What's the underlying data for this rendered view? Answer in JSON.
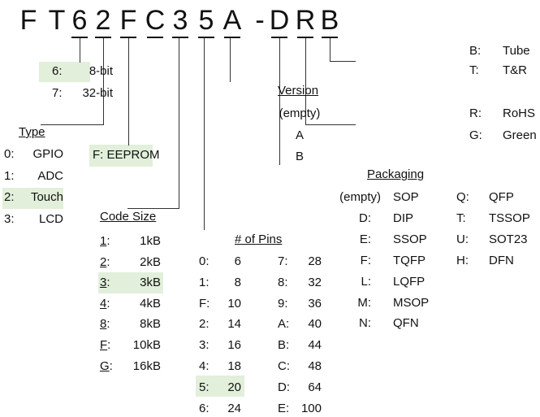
{
  "part_number": {
    "chars": [
      "F",
      "T",
      "6",
      "2",
      "F",
      "C",
      "3",
      "5",
      "A",
      "-",
      "D",
      "R",
      "B"
    ]
  },
  "highlight_color": "#e2efda",
  "bits": {
    "items": [
      {
        "code": "6:",
        "value": "8-bit",
        "selected": true
      },
      {
        "code": "7:",
        "value": "32-bit"
      }
    ]
  },
  "type": {
    "title": "Type",
    "items": [
      {
        "code": "0:",
        "value": "GPIO"
      },
      {
        "code": "1:",
        "value": "ADC"
      },
      {
        "code": "2:",
        "value": "Touch",
        "selected": true
      },
      {
        "code": "3:",
        "value": "LCD"
      }
    ]
  },
  "memory": {
    "label": "F: EEPROM",
    "selected": true
  },
  "code_size": {
    "title": "Code Size",
    "items": [
      {
        "code": "1",
        "value": "1kB"
      },
      {
        "code": "2",
        "value": "2kB"
      },
      {
        "code": "3",
        "value": "3kB",
        "selected": true
      },
      {
        "code": "4",
        "value": "4kB"
      },
      {
        "code": "8",
        "value": "8kB"
      },
      {
        "code": "F",
        "value": "10kB"
      },
      {
        "code": "G",
        "value": "16kB"
      }
    ]
  },
  "pins": {
    "title": "# of Pins",
    "col1": [
      {
        "code": "0:",
        "value": "6"
      },
      {
        "code": "1:",
        "value": "8"
      },
      {
        "code": "F:",
        "value": "10"
      },
      {
        "code": "2:",
        "value": "14"
      },
      {
        "code": "3:",
        "value": "16"
      },
      {
        "code": "4:",
        "value": "18"
      },
      {
        "code": "5:",
        "value": "20",
        "selected": true
      },
      {
        "code": "6:",
        "value": "24"
      }
    ],
    "col2": [
      {
        "code": "7:",
        "value": "28"
      },
      {
        "code": "8:",
        "value": "32"
      },
      {
        "code": "9:",
        "value": "36"
      },
      {
        "code": "A:",
        "value": "40"
      },
      {
        "code": "B:",
        "value": "44"
      },
      {
        "code": "C:",
        "value": "48"
      },
      {
        "code": "D:",
        "value": "64"
      },
      {
        "code": "E:",
        "value": "100"
      }
    ]
  },
  "version": {
    "title": "Version",
    "items": [
      "(empty)",
      "A",
      "B"
    ]
  },
  "packaging": {
    "title": "Packaging",
    "col1": [
      {
        "code": "(empty)",
        "value": "SOP"
      },
      {
        "code": "D:",
        "value": "DIP"
      },
      {
        "code": "E:",
        "value": "SSOP"
      },
      {
        "code": "F:",
        "value": "TQFP"
      },
      {
        "code": "L:",
        "value": "LQFP"
      },
      {
        "code": "M:",
        "value": "MSOP"
      },
      {
        "code": "N:",
        "value": "QFN"
      }
    ],
    "col2": [
      {
        "code": "Q:",
        "value": "QFP"
      },
      {
        "code": "T:",
        "value": "TSSOP"
      },
      {
        "code": "U:",
        "value": "SOT23"
      },
      {
        "code": "H:",
        "value": "DFN"
      }
    ]
  },
  "compliance": {
    "items": [
      {
        "code": "R:",
        "value": "RoHS"
      },
      {
        "code": "G:",
        "value": "Green"
      }
    ]
  },
  "shipping": {
    "items": [
      {
        "code": "B:",
        "value": "Tube"
      },
      {
        "code": "T:",
        "value": "T&R"
      }
    ]
  }
}
